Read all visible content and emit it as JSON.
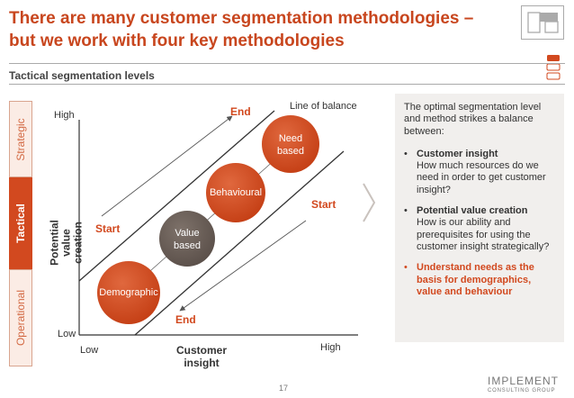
{
  "header": {
    "title_line1": "There are many customer segmentation methodologies –",
    "title_line2": "but we work with four key methodologies",
    "section_title": "Tactical segmentation levels"
  },
  "tiers": [
    "Strategic",
    "Tactical",
    "Operational"
  ],
  "active_tier": "Tactical",
  "diagram": {
    "y_axis": {
      "label_line1": "Potential",
      "label_line2": "value creation",
      "high": "High",
      "low": "Low"
    },
    "x_axis": {
      "label_line1": "Customer",
      "label_line2": "insight",
      "low": "Low",
      "high": "High"
    },
    "line_of_balance": "Line of balance",
    "upper_arrow": {
      "start": "Start",
      "end": "End"
    },
    "lower_arrow": {
      "start": "Start",
      "end": "End"
    },
    "methods": [
      {
        "line1": "Demographic",
        "line2": "",
        "color": "#d2491f"
      },
      {
        "line1": "Value",
        "line2": "based",
        "color": "#6b5f58"
      },
      {
        "line1": "Behavioural",
        "line2": "",
        "color": "#d2491f"
      },
      {
        "line1": "Need",
        "line2": "based",
        "color": "#d2491f"
      }
    ]
  },
  "panel": {
    "intro": "The optimal segmentation level and method strikes a balance between:",
    "items": [
      {
        "head": "Customer insight",
        "body": "How much resources do we need in order to get customer insight?",
        "highlight": false
      },
      {
        "head": "Potential value creation",
        "body": "How is our ability and prerequisites for using the customer insight strategically?",
        "highlight": false
      },
      {
        "head": "Understand needs as the basis for demographics, value and behaviour",
        "body": "",
        "highlight": true
      }
    ]
  },
  "footer": {
    "page_number": "17",
    "brand": "IMPLEMENT",
    "brand_sub": "CONSULTING GROUP"
  },
  "colors": {
    "accent": "#d2491f",
    "dark": "#6b5f58",
    "panel": "#f1efed"
  }
}
